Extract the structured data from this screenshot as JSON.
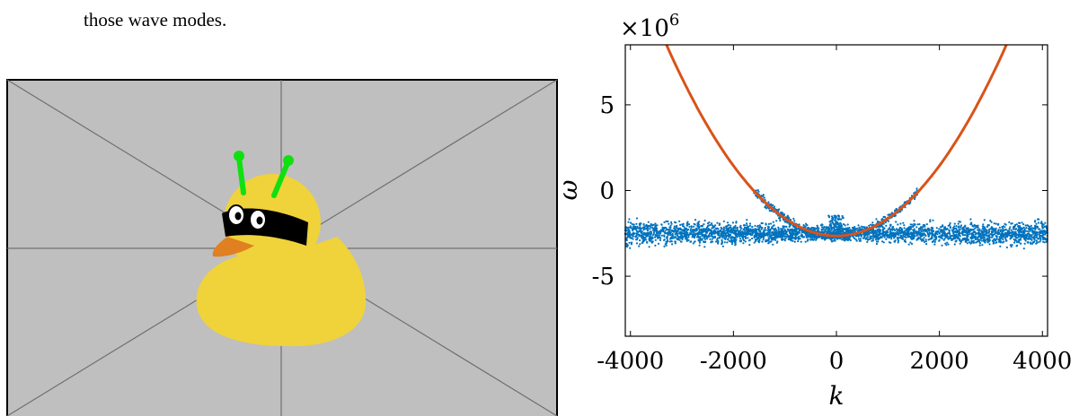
{
  "document": {
    "body_text": "those wave modes."
  },
  "figure_left": {
    "icon": "placeholder-duck-image"
  },
  "chart_data": {
    "type": "scatter",
    "title": "",
    "xlabel": "k",
    "ylabel": "ω",
    "y_exponent_label": "×10",
    "y_exponent_power": "6",
    "xlim": [
      -4100,
      4100
    ],
    "ylim": [
      -8.5,
      8.5
    ],
    "x_ticks": [
      -4000,
      -2000,
      0,
      2000,
      4000
    ],
    "x_tick_labels": [
      "-4000",
      "-2000",
      "0",
      "2000",
      "4000"
    ],
    "y_ticks": [
      -5,
      0,
      5
    ],
    "y_tick_labels": [
      "-5",
      "0",
      "5"
    ],
    "grid": false,
    "series": [
      {
        "type": "scatter",
        "color": "#0072bd",
        "description_points": {
          "band_center": -2.5,
          "band_halfwidth": 0.6,
          "branch_k_range": [
            -1600,
            1600
          ]
        }
      },
      {
        "type": "line",
        "color": "#d95319",
        "curve": "parabola",
        "vertex": [
          0,
          -2.65
        ],
        "points": [
          [
            -3300,
            8.5
          ],
          [
            -2000,
            2.22
          ],
          [
            -1000,
            -1.43
          ],
          [
            0,
            -2.65
          ],
          [
            1000,
            -1.43
          ],
          [
            2000,
            2.22
          ],
          [
            3300,
            8.5
          ]
        ]
      }
    ]
  }
}
